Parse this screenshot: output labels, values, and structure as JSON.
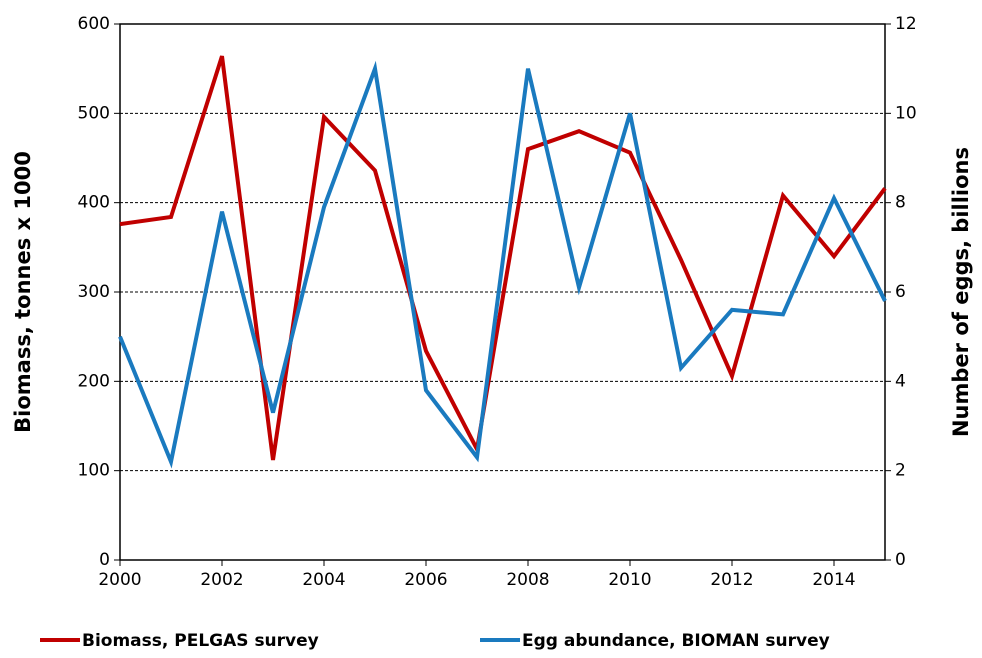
{
  "chart_data": {
    "type": "line",
    "x": [
      2000,
      2001,
      2002,
      2003,
      2004,
      2005,
      2006,
      2007,
      2008,
      2009,
      2010,
      2011,
      2012,
      2013,
      2014,
      2015
    ],
    "xlim": [
      2000,
      2015
    ],
    "xticks": [
      2000,
      2002,
      2004,
      2006,
      2008,
      2010,
      2012,
      2014
    ],
    "ylim": [
      0,
      600
    ],
    "yticks": [
      0,
      100,
      200,
      300,
      400,
      500,
      600
    ],
    "y2lim": [
      0,
      12
    ],
    "y2ticks": [
      0,
      2,
      4,
      6,
      8,
      10,
      12
    ],
    "ylabel": "Biomass, tonnes x 1000",
    "y2label": "Number of eggs, billions",
    "grid": true,
    "legend": "bottom",
    "series": [
      {
        "name": "Biomass, PELGAS survey",
        "color": "#c00000",
        "values": [
          376,
          384,
          564,
          112,
          496,
          436,
          234,
          124,
          460,
          480,
          456,
          336,
          206,
          408,
          340,
          416
        ]
      },
      {
        "name": "Egg abundance, BIOMAN survey",
        "color": "#1a7abf",
        "axis": "y2",
        "values": [
          5.0,
          2.2,
          7.8,
          3.3,
          7.9,
          11.0,
          3.8,
          2.3,
          11.0,
          6.1,
          10.0,
          4.3,
          5.6,
          5.5,
          8.1,
          5.8
        ]
      }
    ]
  }
}
